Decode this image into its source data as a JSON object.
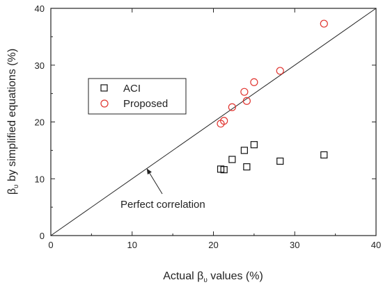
{
  "chart_data": {
    "type": "scatter",
    "xlabel_main": "Actual β",
    "xlabel_sub": "υ",
    "xlabel_tail": " values (%)",
    "ylabel_main": "β",
    "ylabel_sub": "υ",
    "ylabel_tail": " by simplified equations (%)",
    "xlim": [
      0,
      40
    ],
    "ylim": [
      0,
      40
    ],
    "xticks": [
      0,
      10,
      20,
      30,
      40
    ],
    "yticks": [
      0,
      10,
      20,
      30,
      40
    ],
    "grid": false,
    "legend_position": "upper-left",
    "reference_line": {
      "from": [
        0,
        0
      ],
      "to": [
        40,
        40
      ]
    },
    "annotation": {
      "text": "Perfect correlation",
      "points_to": [
        11.8,
        11.8
      ]
    },
    "series": [
      {
        "name": "ACI",
        "marker": "square",
        "color": "#111111",
        "x": [
          20.9,
          21.3,
          22.3,
          23.8,
          24.1,
          25.0,
          28.2,
          33.6
        ],
        "y": [
          11.7,
          11.6,
          13.4,
          15.0,
          12.1,
          16.0,
          13.1,
          14.2
        ]
      },
      {
        "name": "Proposed",
        "marker": "circle",
        "color": "#e0332e",
        "x": [
          20.9,
          21.3,
          22.3,
          23.8,
          24.1,
          25.0,
          28.2,
          33.6
        ],
        "y": [
          19.7,
          20.2,
          22.6,
          25.3,
          23.7,
          27.0,
          29.0,
          37.3
        ]
      }
    ]
  }
}
